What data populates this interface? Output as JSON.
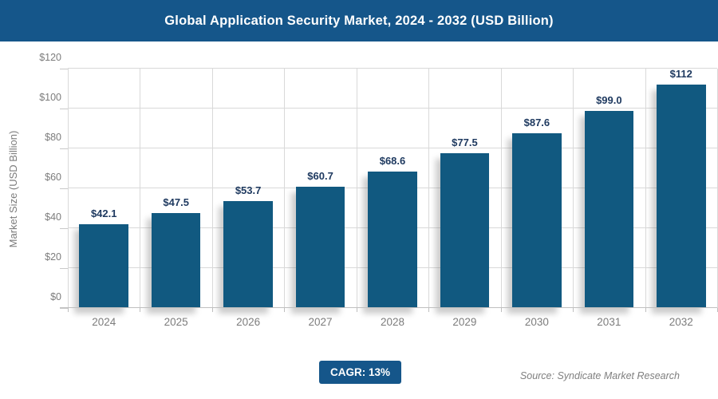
{
  "header": {
    "title": "Global Application Security Market, 2024 - 2032 (USD Billion)",
    "bg_color": "#15568A",
    "text_color": "#FFFFFF"
  },
  "chart_data": {
    "type": "bar",
    "title": "Global Application Security Market, 2024 - 2032 (USD Billion)",
    "categories": [
      "2024",
      "2025",
      "2026",
      "2027",
      "2028",
      "2029",
      "2030",
      "2031",
      "2032"
    ],
    "values": [
      42.1,
      47.5,
      53.7,
      60.7,
      68.6,
      77.5,
      87.6,
      99.0,
      112
    ],
    "bar_labels": [
      "$42.1",
      "$47.5",
      "$53.7",
      "$60.7",
      "$68.6",
      "$77.5",
      "$87.6",
      "$99.0",
      "$112"
    ],
    "xlabel": "",
    "ylabel": "Market Size (USD Billion)",
    "ylim": [
      0,
      120
    ],
    "y_tick_step": 20,
    "y_tick_labels": [
      "$0",
      "$20",
      "$40",
      "$60",
      "$80",
      "$100",
      "$120"
    ],
    "grid": true,
    "legend_position": "none",
    "bar_color": "#115980",
    "value_label_color": "#1F3A60",
    "axis_text_color": "#7C7C7C",
    "gridline_color": "#D9D9D9"
  },
  "footer": {
    "cagr_badge": "CAGR: 13%",
    "badge_bg": "#15568A",
    "badge_text_color": "#FFFFFF",
    "source": "Source: Syndicate Market Research"
  }
}
